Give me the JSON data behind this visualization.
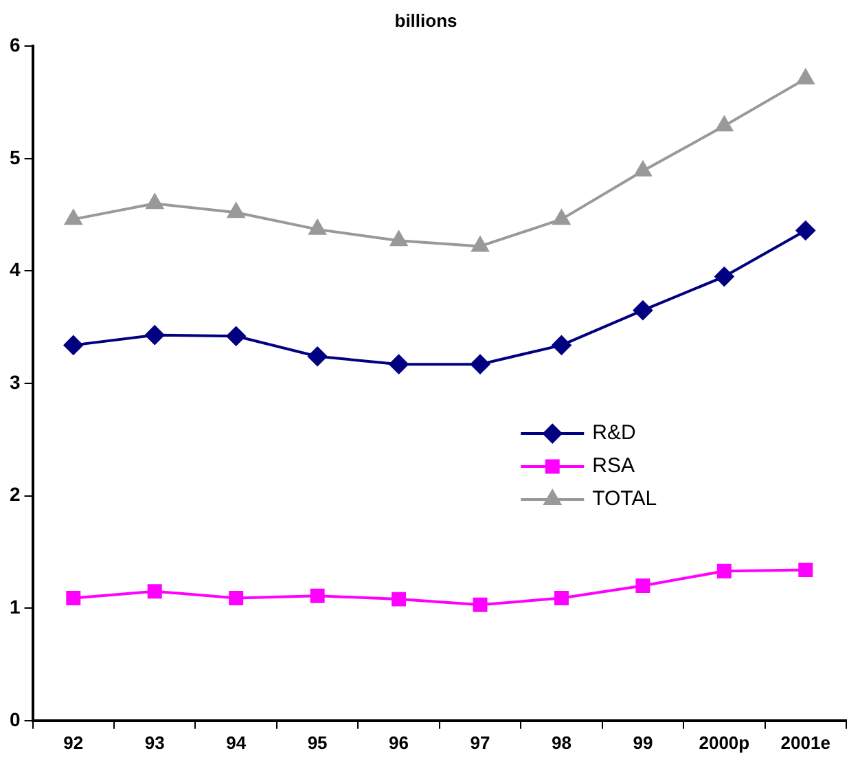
{
  "chart_data": {
    "type": "line",
    "title": "billions",
    "categories": [
      "92",
      "93",
      "94",
      "95",
      "96",
      "97",
      "98",
      "99",
      "2000p",
      "2001e"
    ],
    "series": [
      {
        "name": "R&D",
        "color": "#000080",
        "marker": "diamond",
        "values": [
          3.34,
          3.43,
          3.42,
          3.24,
          3.17,
          3.17,
          3.34,
          3.65,
          3.95,
          4.36
        ]
      },
      {
        "name": "RSA",
        "color": "#ff00ff",
        "marker": "square",
        "values": [
          1.09,
          1.15,
          1.09,
          1.11,
          1.08,
          1.03,
          1.09,
          1.2,
          1.33,
          1.34
        ]
      },
      {
        "name": "TOTAL",
        "color": "#999999",
        "marker": "triangle",
        "values": [
          4.46,
          4.6,
          4.52,
          4.37,
          4.27,
          4.22,
          4.46,
          4.89,
          5.29,
          5.71
        ]
      }
    ],
    "ylim": [
      0,
      6
    ],
    "yticks": [
      0,
      1,
      2,
      3,
      4,
      5,
      6
    ],
    "grid": false,
    "legend": "right"
  }
}
